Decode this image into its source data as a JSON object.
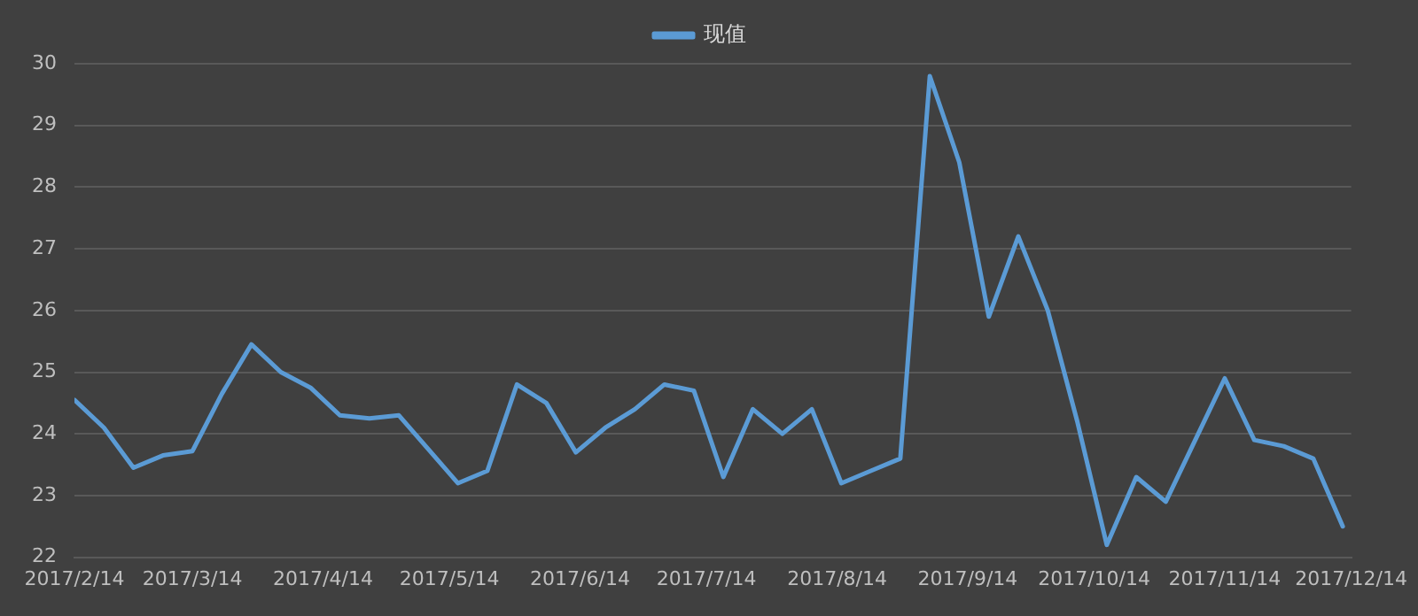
{
  "chart_data": {
    "type": "line",
    "legend": "top",
    "grid": "y",
    "marker": "none",
    "line_style": "solid",
    "x": [
      "2017-02-14",
      "2017-02-21",
      "2017-02-28",
      "2017-03-07",
      "2017-03-14",
      "2017-03-21",
      "2017-03-28",
      "2017-04-04",
      "2017-04-11",
      "2017-04-18",
      "2017-04-25",
      "2017-05-02",
      "2017-05-09",
      "2017-05-16",
      "2017-05-23",
      "2017-05-30",
      "2017-06-06",
      "2017-06-13",
      "2017-06-20",
      "2017-06-27",
      "2017-07-04",
      "2017-07-11",
      "2017-07-18",
      "2017-07-25",
      "2017-08-01",
      "2017-08-08",
      "2017-08-15",
      "2017-08-22",
      "2017-08-29",
      "2017-09-05",
      "2017-09-12",
      "2017-09-19",
      "2017-09-26",
      "2017-10-03",
      "2017-10-10",
      "2017-10-17",
      "2017-10-24",
      "2017-10-31",
      "2017-11-07",
      "2017-11-14",
      "2017-11-21",
      "2017-11-28",
      "2017-12-05",
      "2017-12-12"
    ],
    "series": [
      {
        "name": "现值",
        "color": "#5b9bd5",
        "values": [
          24.55,
          24.1,
          23.45,
          23.65,
          23.72,
          24.65,
          25.45,
          25.0,
          24.75,
          24.3,
          24.25,
          24.3,
          23.75,
          23.2,
          23.4,
          24.8,
          24.5,
          23.7,
          24.1,
          24.4,
          24.8,
          24.7,
          23.3,
          24.4,
          24.0,
          24.4,
          23.2,
          23.4,
          23.6,
          29.8,
          28.4,
          25.9,
          27.2,
          26.0,
          24.2,
          22.2,
          23.3,
          22.9,
          23.9,
          24.9,
          23.9,
          23.8,
          23.6,
          22.5
        ]
      }
    ],
    "xlim": [
      "2017-02-14",
      "2017-12-14"
    ],
    "xticks": [
      {
        "value": "2017-02-14",
        "label": "2017/2/14"
      },
      {
        "value": "2017-03-14",
        "label": "2017/3/14"
      },
      {
        "value": "2017-04-14",
        "label": "2017/4/14"
      },
      {
        "value": "2017-05-14",
        "label": "2017/5/14"
      },
      {
        "value": "2017-06-14",
        "label": "2017/6/14"
      },
      {
        "value": "2017-07-14",
        "label": "2017/7/14"
      },
      {
        "value": "2017-08-14",
        "label": "2017/8/14"
      },
      {
        "value": "2017-09-14",
        "label": "2017/9/14"
      },
      {
        "value": "2017-10-14",
        "label": "2017/10/14"
      },
      {
        "value": "2017-11-14",
        "label": "2017/11/14"
      },
      {
        "value": "2017-12-14",
        "label": "2017/12/14"
      }
    ],
    "ylim": [
      22,
      30
    ],
    "yticks": [
      22,
      23,
      24,
      25,
      26,
      27,
      28,
      29,
      30
    ]
  }
}
